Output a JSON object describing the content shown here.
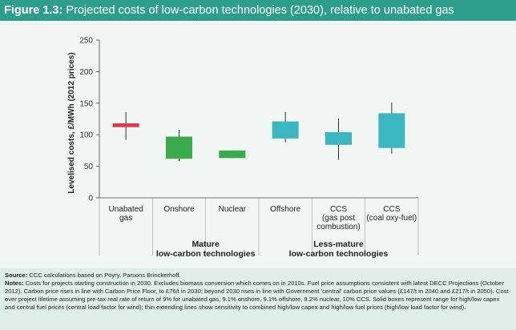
{
  "figure": {
    "label": "Figure 1.3:",
    "title": "Projected costs of low-carbon technologies (2030), relative to unabated gas"
  },
  "chart_data": {
    "type": "box",
    "ylabel": "Levelised costs, £/MWh (2012 prices)",
    "ylim": [
      0,
      250
    ],
    "yticks": [
      0,
      50,
      100,
      150,
      200,
      250
    ],
    "grid": false,
    "categories": [
      {
        "label": [
          "Unabated",
          "gas"
        ],
        "color": "#e03a4a",
        "box": [
          112,
          118
        ],
        "whisker": [
          92,
          136
        ]
      },
      {
        "label": [
          "Onshore"
        ],
        "color": "#3aaa4a",
        "box": [
          62,
          97
        ],
        "whisker": [
          58,
          108
        ]
      },
      {
        "label": [
          "Nuclear"
        ],
        "color": "#3aaa4a",
        "box": [
          63,
          75
        ],
        "whisker": [
          63,
          75
        ]
      },
      {
        "label": [
          "Offshore"
        ],
        "color": "#3ab8c2",
        "box": [
          94,
          121
        ],
        "whisker": [
          88,
          136
        ]
      },
      {
        "label": [
          "CCS",
          "(gas post",
          "combustion)"
        ],
        "color": "#3ab8c2",
        "box": [
          84,
          104
        ],
        "whisker": [
          60,
          126
        ]
      },
      {
        "label": [
          "CCS",
          "(coal oxy-fuel)"
        ],
        "color": "#3ab8c2",
        "box": [
          79,
          134
        ],
        "whisker": [
          70,
          151
        ]
      }
    ],
    "groups": [
      {
        "label": [
          "Mature",
          "low-carbon technologies"
        ],
        "from": 1,
        "to": 2
      },
      {
        "label": [
          "Less-mature",
          "low-carbon technologies"
        ],
        "from": 3,
        "to": 5
      }
    ]
  },
  "notes": {
    "source_label": "Source:",
    "source_text": " CCC calculations based on Pöyry, Parsons Brinckerhoff.",
    "notes_label": "Notes:",
    "notes_text": " Costs for projects starting construction in 2030. Excludes biomass conversion which comes on in 2010s. Fuel price assumptions consistent with latest DECC Projections (October 2012). Carbon price rises in line with Carbon Price Floor, to £76/t in 2030; beyond 2030 rises in line with Government 'central' carbon price values (£147/t in 2040 and £217/t in 2050). Cost over project lifetime assuming pre-tax real rate of return of 9% for unabated gas, 9.1% onshore, 9.1% offshore, 9.2% nuclear, 10% CCS. Solid boxes represent range for high/low capex and central fuel prices (central load factor for wind); thin extending lines show sensitivity to combined high/low capex and high/low fuel prices (high/low load factor for wind)."
  }
}
